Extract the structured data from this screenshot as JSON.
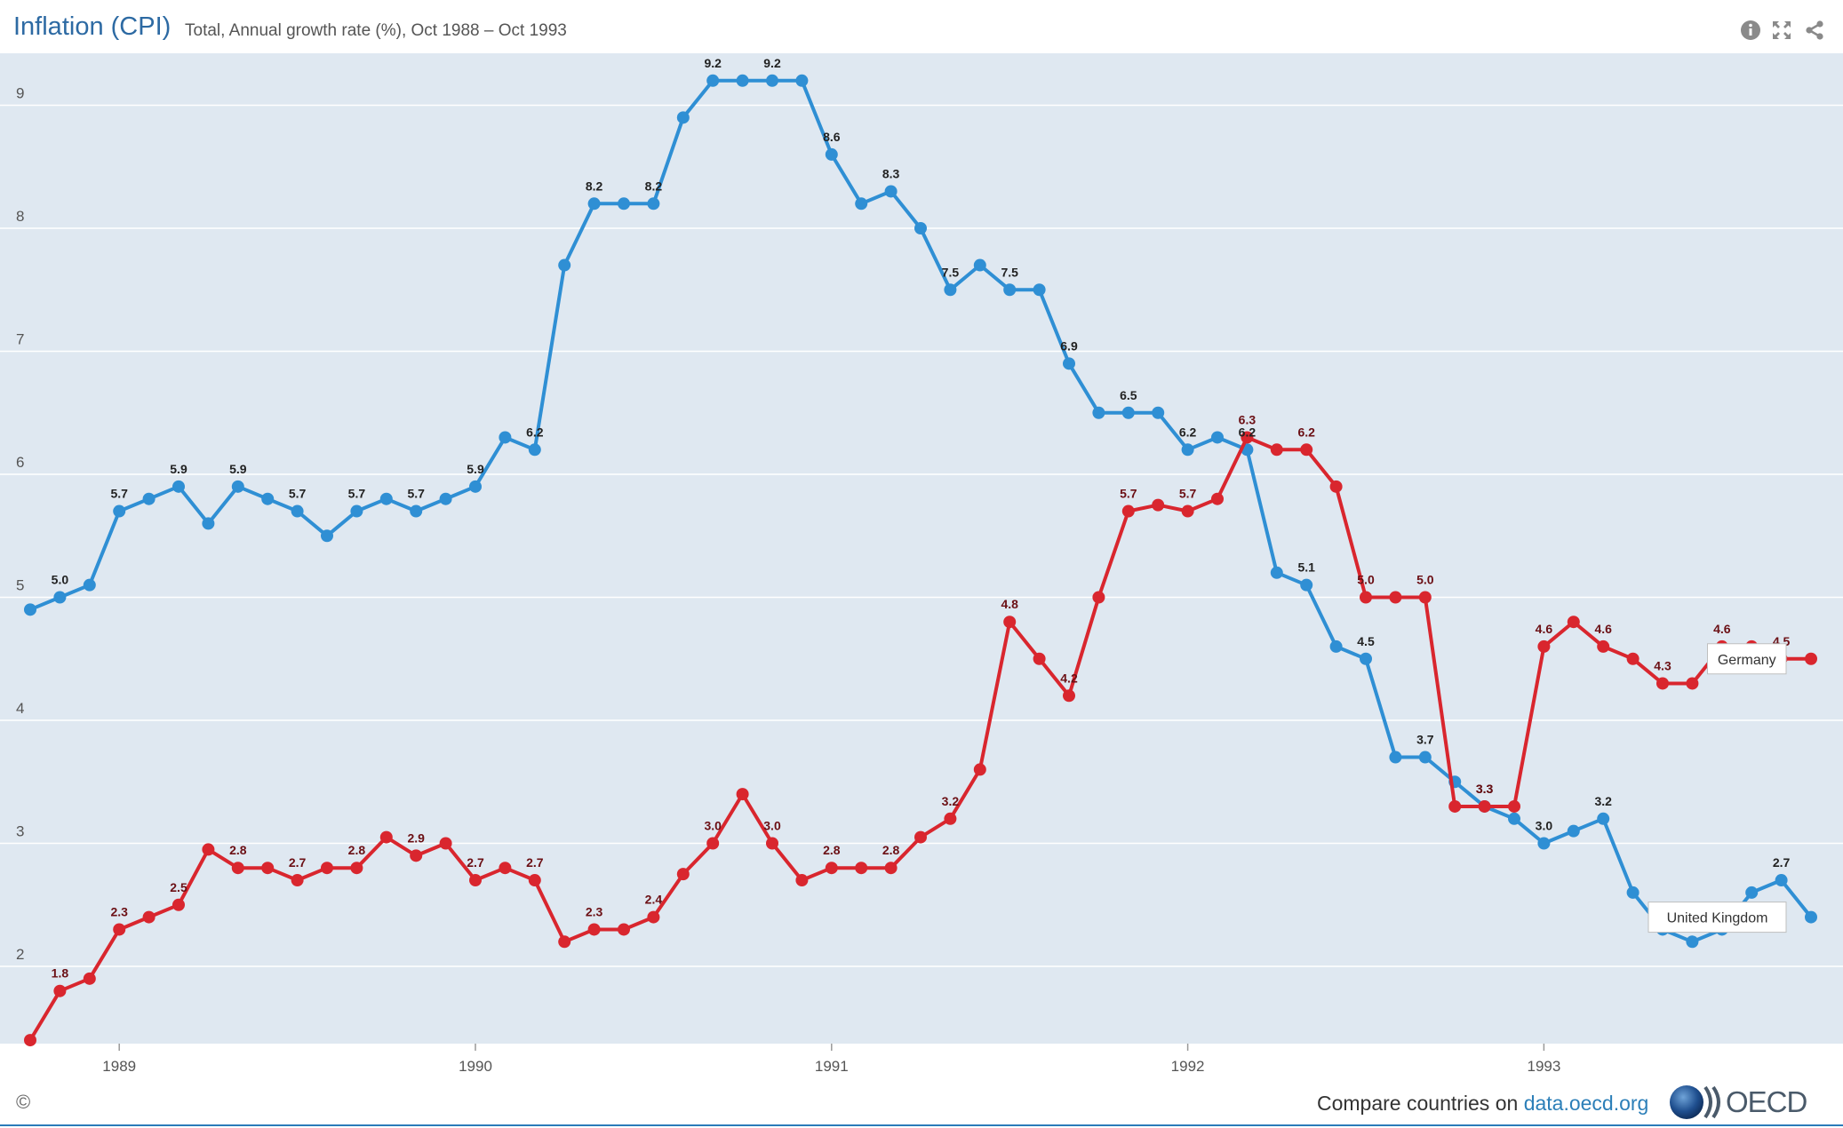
{
  "header": {
    "title": "Inflation (CPI)",
    "subtitle": "Total, Annual growth rate (%), Oct 1988 – Oct 1993",
    "icons": [
      "info-icon",
      "fullscreen-icon",
      "share-icon"
    ]
  },
  "footer": {
    "copyright": "©",
    "compare_text": "Compare countries on ",
    "compare_link": "data.oecd.org",
    "logo_text": "OECD"
  },
  "colors": {
    "plot_background": "#dfe8f1",
    "uk_line": "#2f8fd4",
    "germany_line": "#d9262e",
    "gridline": "#ffffff"
  },
  "chart_data": {
    "type": "line",
    "title": "Inflation (CPI)",
    "subtitle": "Total, Annual growth rate (%), Oct 1988 – Oct 1993",
    "x": [
      "1988-10",
      "1988-11",
      "1988-12",
      "1989-01",
      "1989-02",
      "1989-03",
      "1989-04",
      "1989-05",
      "1989-06",
      "1989-07",
      "1989-08",
      "1989-09",
      "1989-10",
      "1989-11",
      "1989-12",
      "1990-01",
      "1990-02",
      "1990-03",
      "1990-04",
      "1990-05",
      "1990-06",
      "1990-07",
      "1990-08",
      "1990-09",
      "1990-10",
      "1990-11",
      "1990-12",
      "1991-01",
      "1991-02",
      "1991-03",
      "1991-04",
      "1991-05",
      "1991-06",
      "1991-07",
      "1991-08",
      "1991-09",
      "1991-10",
      "1991-11",
      "1991-12",
      "1992-01",
      "1992-02",
      "1992-03",
      "1992-04",
      "1992-05",
      "1992-06",
      "1992-07",
      "1992-08",
      "1992-09",
      "1992-10",
      "1992-11",
      "1992-12",
      "1993-01",
      "1993-02",
      "1993-03",
      "1993-04",
      "1993-05",
      "1993-06",
      "1993-07",
      "1993-08",
      "1993-09",
      "1993-10"
    ],
    "x_tick_labels": [
      "1989",
      "1990",
      "1991",
      "1992",
      "1993"
    ],
    "y_ticks": [
      2,
      3,
      4,
      5,
      6,
      7,
      8,
      9
    ],
    "ylim": [
      1.4,
      9.4
    ],
    "grid": true,
    "legend": "inline end-of-line labels",
    "series": [
      {
        "name": "United Kingdom",
        "color": "#2f8fd4",
        "values": [
          4.9,
          5.0,
          5.1,
          5.7,
          5.8,
          5.9,
          5.6,
          5.9,
          5.8,
          5.7,
          5.5,
          5.7,
          5.8,
          5.7,
          5.8,
          5.9,
          6.3,
          6.2,
          7.7,
          8.2,
          8.2,
          8.2,
          8.9,
          9.2,
          9.2,
          9.2,
          9.2,
          8.6,
          8.2,
          8.3,
          8.0,
          7.5,
          7.7,
          7.5,
          7.5,
          6.9,
          6.5,
          6.5,
          6.5,
          6.2,
          6.3,
          6.2,
          5.2,
          5.1,
          4.6,
          4.5,
          3.7,
          3.7,
          3.5,
          3.3,
          3.2,
          3.0,
          3.1,
          3.2,
          2.6,
          2.3,
          2.2,
          2.3,
          2.6,
          2.7,
          2.4
        ],
        "label_indices": [
          1,
          3,
          5,
          7,
          9,
          11,
          13,
          15,
          17,
          19,
          21,
          23,
          25,
          27,
          29,
          31,
          33,
          35,
          37,
          39,
          41,
          43,
          45,
          47,
          49,
          51,
          53,
          55,
          57,
          59
        ]
      },
      {
        "name": "Germany",
        "color": "#d9262e",
        "values": [
          1.4,
          1.8,
          1.9,
          2.3,
          2.4,
          2.5,
          2.95,
          2.8,
          2.8,
          2.7,
          2.8,
          2.8,
          3.05,
          2.9,
          3.0,
          2.7,
          2.8,
          2.7,
          2.2,
          2.3,
          2.3,
          2.4,
          2.75,
          3.0,
          3.4,
          3.0,
          2.7,
          2.8,
          2.8,
          2.8,
          3.05,
          3.2,
          3.6,
          4.8,
          4.5,
          4.2,
          5.0,
          5.7,
          5.75,
          5.7,
          5.8,
          6.3,
          6.2,
          6.2,
          5.9,
          5.0,
          5.0,
          5.0,
          3.3,
          3.3,
          3.3,
          4.6,
          4.8,
          4.6,
          4.5,
          4.3,
          4.3,
          4.6,
          4.6,
          4.5,
          4.5
        ],
        "label_indices": [
          1,
          3,
          5,
          7,
          9,
          11,
          13,
          15,
          17,
          19,
          21,
          23,
          25,
          27,
          29,
          31,
          33,
          35,
          37,
          39,
          41,
          43,
          45,
          47,
          49,
          51,
          53,
          55,
          57,
          59
        ]
      }
    ]
  }
}
